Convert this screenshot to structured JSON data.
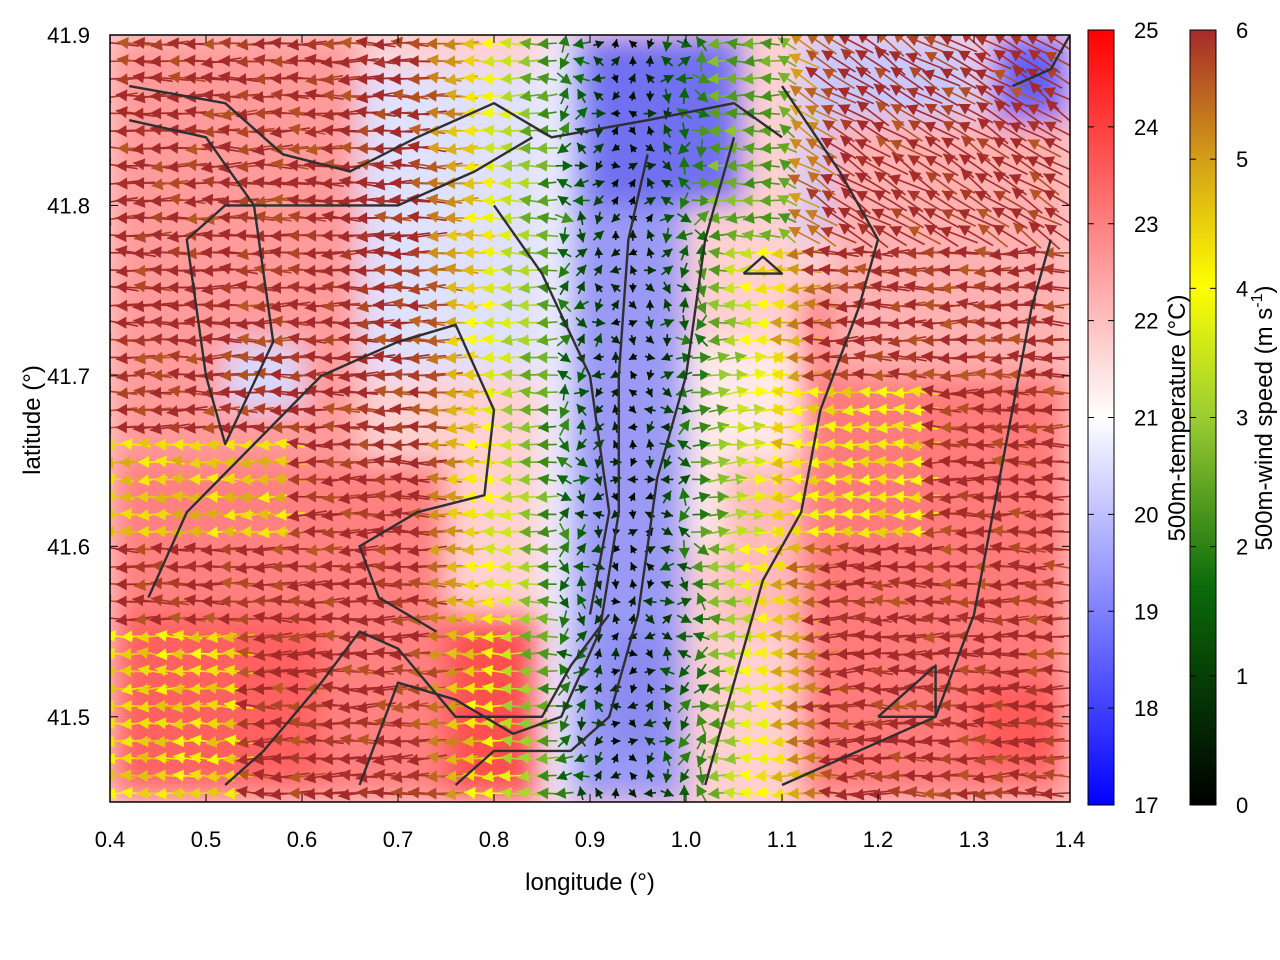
{
  "chart_data": {
    "type": "heatmap",
    "overlay": "vector-field",
    "title": "",
    "xlabel": "longitude (°)",
    "ylabel": "latitude (°)",
    "xlim": [
      0.4,
      1.4
    ],
    "ylim": [
      41.45,
      41.9
    ],
    "xticks": [
      "0.4",
      "0.5",
      "0.6",
      "0.7",
      "0.8",
      "0.9",
      "1.0",
      "1.1",
      "1.2",
      "1.3",
      "1.4"
    ],
    "yticks": [
      "41.5",
      "41.6",
      "41.7",
      "41.8",
      "41.9"
    ],
    "ytick_values": [
      41.5,
      41.6,
      41.7,
      41.8,
      41.9
    ],
    "grid": false,
    "colorbars": [
      {
        "label": "500m-temperature (°C)",
        "range": [
          17,
          25
        ],
        "ticks": [
          "17",
          "18",
          "19",
          "20",
          "21",
          "22",
          "23",
          "24",
          "25"
        ],
        "colors": [
          "#0000ff",
          "#ffffff",
          "#ff0000"
        ]
      },
      {
        "label_main": "500m-wind speed (m s",
        "label_sup": "-1",
        "label_end": ")",
        "range": [
          0,
          6
        ],
        "ticks": [
          "0",
          "1",
          "2",
          "3",
          "4",
          "5",
          "6"
        ],
        "colors": [
          "#000000",
          "#0a6a0a",
          "#9acd32",
          "#ffff00",
          "#d4a017",
          "#a52a2a"
        ]
      }
    ],
    "temperature_field_note_values": {
      "warm_west_lon": [
        0.4,
        0.85
      ],
      "cool_valley_lon": [
        0.88,
        1.0
      ],
      "cool_blue_min_C": 17.8,
      "warm_red_max_C": 24.5
    },
    "wind": {
      "dominant_direction": "from east (westward arrows)",
      "calm_zone_lon": [
        0.88,
        1.0
      ],
      "max_speed": 6
    }
  }
}
